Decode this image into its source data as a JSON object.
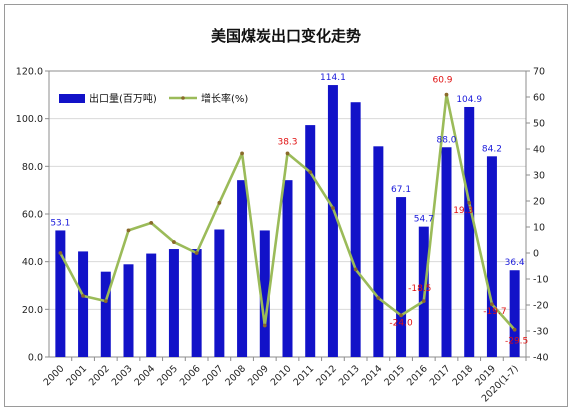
{
  "chart_data": {
    "type": "bar",
    "title": "美国煤炭出口变化走势",
    "categories": [
      "2000",
      "2001",
      "2002",
      "2003",
      "2004",
      "2005",
      "2006",
      "2007",
      "2008",
      "2009",
      "2010",
      "2011",
      "2012",
      "2013",
      "2014",
      "2015",
      "2016",
      "2017",
      "2018",
      "2019",
      "2020(1-7)"
    ],
    "series": [
      {
        "name": "出口量(百万吨)",
        "type": "bar",
        "axis": "left",
        "color": "#1212c8",
        "values": [
          53.1,
          44.3,
          35.8,
          38.9,
          43.4,
          45.3,
          45.3,
          53.5,
          74.2,
          53.1,
          74.2,
          97.3,
          114.1,
          106.9,
          88.4,
          67.1,
          54.7,
          88.0,
          104.9,
          84.2,
          36.4
        ],
        "data_labels": [
          {
            "index": 0,
            "text": "53.1"
          },
          {
            "index": 12,
            "text": "114.1"
          },
          {
            "index": 15,
            "text": "67.1"
          },
          {
            "index": 16,
            "text": "54.7"
          },
          {
            "index": 17,
            "text": "88.0"
          },
          {
            "index": 18,
            "text": "104.9"
          },
          {
            "index": 19,
            "text": "84.2"
          },
          {
            "index": 20,
            "text": "36.4"
          }
        ]
      },
      {
        "name": "增长率(%)",
        "type": "line",
        "axis": "right",
        "color": "#9bbb59",
        "values": [
          0,
          -16.5,
          -18.5,
          8.7,
          11.6,
          4.2,
          0,
          19.3,
          38.3,
          -27.9,
          38.3,
          31.1,
          17.3,
          -6.3,
          -17.3,
          -24.0,
          -18.5,
          60.9,
          19.3,
          -19.7,
          -29.5
        ],
        "data_labels": [
          {
            "index": 10,
            "text": "38.3"
          },
          {
            "index": 15,
            "text": "-24.0"
          },
          {
            "index": 16,
            "text": "-18.5"
          },
          {
            "index": 17,
            "text": "60.9"
          },
          {
            "index": 18,
            "text": "19.3"
          },
          {
            "index": 19,
            "text": "-19.7"
          },
          {
            "index": 20,
            "text": "-29.5"
          }
        ]
      }
    ],
    "y_left": {
      "min": 0,
      "max": 120,
      "step": 20,
      "tick_labels": [
        "0.0",
        "20.0",
        "40.0",
        "60.0",
        "80.0",
        "100.0",
        "120.0"
      ]
    },
    "y_right": {
      "min": -40,
      "max": 70,
      "step": 10,
      "tick_labels": [
        "-40",
        "-30",
        "-20",
        "-10",
        "0",
        "10",
        "20",
        "30",
        "40",
        "50",
        "60",
        "70"
      ]
    },
    "grid": true,
    "legend_position": "top-left"
  }
}
